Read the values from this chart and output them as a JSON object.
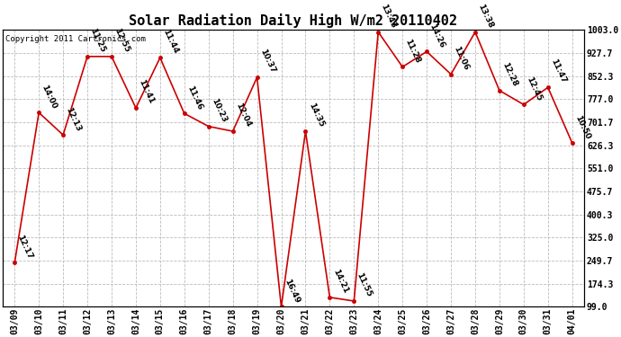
{
  "title": "Solar Radiation Daily High W/m2 20110402",
  "copyright": "Copyright 2011 Cartronics.com",
  "background_color": "#ffffff",
  "plot_bg_color": "#ffffff",
  "line_color": "#cc0000",
  "marker_color": "#cc0000",
  "grid_color": "#bbbbbb",
  "dates": [
    "03/09",
    "03/10",
    "03/11",
    "03/12",
    "03/13",
    "03/14",
    "03/15",
    "03/16",
    "03/17",
    "03/18",
    "03/19",
    "03/20",
    "03/21",
    "03/22",
    "03/23",
    "03/24",
    "03/25",
    "03/26",
    "03/27",
    "03/28",
    "03/29",
    "03/30",
    "03/31",
    "04/01"
  ],
  "values": [
    243,
    733,
    660,
    916,
    916,
    748,
    912,
    730,
    688,
    672,
    848,
    99,
    672,
    130,
    118,
    996,
    882,
    932,
    858,
    996,
    805,
    759,
    815,
    634
  ],
  "labels": [
    "12:17",
    "14:00",
    "12:13",
    "11:25",
    "12:55",
    "11:41",
    "11:44",
    "11:46",
    "10:23",
    "12:04",
    "10:37",
    "16:49",
    "14:35",
    "14:21",
    "11:55",
    "13:43",
    "11:28",
    "14:26",
    "11:06",
    "13:38",
    "12:28",
    "12:45",
    "11:47",
    "10:50"
  ],
  "ytick_values": [
    99.0,
    174.3,
    249.7,
    325.0,
    400.3,
    475.7,
    551.0,
    626.3,
    701.7,
    777.0,
    852.3,
    927.7,
    1003.0
  ],
  "ytick_labels": [
    "99.0",
    "174.3",
    "249.7",
    "325.0",
    "400.3",
    "475.7",
    "551.0",
    "626.3",
    "701.7",
    "777.0",
    "852.3",
    "927.7",
    "1003.0"
  ],
  "ylim": [
    99.0,
    1003.0
  ],
  "title_fontsize": 11,
  "label_fontsize": 6.5,
  "tick_fontsize": 7,
  "copyright_fontsize": 6.5
}
